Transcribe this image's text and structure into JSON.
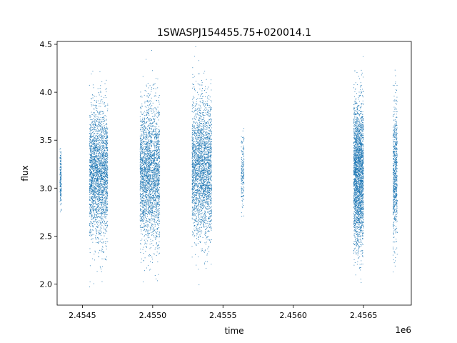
{
  "chart_data": {
    "type": "scatter",
    "title": "1SWASPJ154455.75+020014.1",
    "xlabel": "time",
    "ylabel": "flux",
    "x_offset_label": "1e6",
    "xlim": [
      2.45432,
      2.45684
    ],
    "ylim": [
      1.78,
      4.53
    ],
    "x_ticks": [
      2.4545,
      2.455,
      2.4555,
      2.456,
      2.4565
    ],
    "x_tick_labels": [
      "2.4545",
      "2.4550",
      "2.4555",
      "2.4560",
      "2.4565"
    ],
    "y_ticks": [
      2.0,
      2.5,
      3.0,
      3.5,
      4.0,
      4.5
    ],
    "y_tick_labels": [
      "2.0",
      "2.5",
      "3.0",
      "3.5",
      "4.0",
      "4.5"
    ],
    "grid": false,
    "point_color": "#1f77b4",
    "series": [
      {
        "clusters": [
          {
            "x_start": 2.45434,
            "x_end": 2.45435,
            "y_center": 3.1,
            "y_min": 2.72,
            "y_max": 3.62,
            "density": "low"
          },
          {
            "x_start": 2.45455,
            "x_end": 2.45468,
            "y_center": 3.15,
            "y_min": 1.93,
            "y_max": 4.35,
            "density": "high"
          },
          {
            "x_start": 2.45491,
            "x_end": 2.45505,
            "y_center": 3.15,
            "y_min": 1.88,
            "y_max": 4.45,
            "density": "high"
          },
          {
            "x_start": 2.45528,
            "x_end": 2.45542,
            "y_center": 3.2,
            "y_min": 1.93,
            "y_max": 4.48,
            "density": "high"
          },
          {
            "x_start": 2.45563,
            "x_end": 2.45565,
            "y_center": 3.15,
            "y_min": 2.65,
            "y_max": 3.85,
            "density": "low"
          },
          {
            "x_start": 2.45643,
            "x_end": 2.4565,
            "y_center": 3.15,
            "y_min": 1.88,
            "y_max": 4.48,
            "density": "high"
          },
          {
            "x_start": 2.45671,
            "x_end": 2.45674,
            "y_center": 3.15,
            "y_min": 1.93,
            "y_max": 4.32,
            "density": "medium"
          }
        ]
      }
    ]
  }
}
